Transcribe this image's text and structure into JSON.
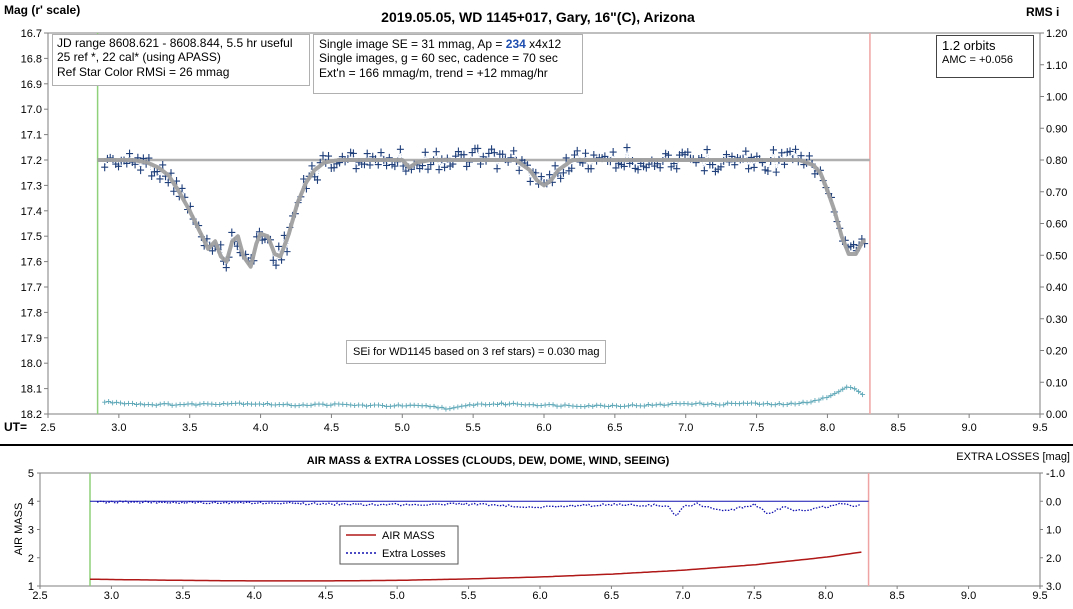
{
  "chart_data": [
    {
      "type": "scatter",
      "title": "2019.05.05, WD 1145+017, Gary, 16\"(C), Arizona",
      "ylabel": "Mag (r' scale)",
      "y2label": "RMS i",
      "xlabel": "UT=",
      "xlim": [
        2.5,
        9.5
      ],
      "xticks": [
        "2.5",
        "3.0",
        "3.5",
        "4.0",
        "4.5",
        "5.0",
        "5.5",
        "6.0",
        "6.5",
        "7.0",
        "7.5",
        "8.0",
        "8.5",
        "9.0",
        "9.5"
      ],
      "ylim": [
        16.7,
        18.2
      ],
      "yticks": [
        "16.7",
        "16.8",
        "16.9",
        "17.0",
        "17.1",
        "17.2",
        "17.3",
        "17.4",
        "17.5",
        "17.6",
        "17.7",
        "17.8",
        "17.9",
        "18.0",
        "18.1",
        "18.2"
      ],
      "y2lim": [
        0.0,
        1.2
      ],
      "y2ticks": [
        "1.20",
        "1.10",
        "1.00",
        "0.90",
        "0.80",
        "0.70",
        "0.60",
        "0.50",
        "0.40",
        "0.30",
        "0.20",
        "0.10",
        "0.00"
      ],
      "grid": false,
      "vlines": [
        {
          "x": 2.85,
          "color": "#8fd07a"
        },
        {
          "x": 8.3,
          "color": "#f0a3a3"
        }
      ],
      "hline": {
        "y": 17.2,
        "color": "#b0b0b0"
      },
      "colors": {
        "mag": "#1f3f7a",
        "model": "#a0a0a0",
        "rms": "#5fa8b8"
      },
      "info_left": [
        "JD range 8608.621 - 8608.844, 5.5 hr useful",
        "25 ref *, 22 cal* (using APASS)",
        "Ref Star Color RMSi = 26 mmag"
      ],
      "info_mid": {
        "line1_pre": "Single image SE = 31 mmag, Ap = ",
        "ap": "234",
        "line1_post": " x4x12",
        "line2": "Single images, g = 60 sec, cadence = 70 sec",
        "line3": "Ext'n = 166 mmag/m, trend = +12 mmag/hr"
      },
      "info_right": [
        "1.2 orbits",
        "AMC = +0.056"
      ],
      "sei_note": "SEi for WD1145 based on 3 ref stars) = 0.030 mag",
      "model": {
        "x": [
          2.85,
          3.0,
          3.1,
          3.2,
          3.28,
          3.35,
          3.42,
          3.5,
          3.57,
          3.63,
          3.68,
          3.72,
          3.76,
          3.8,
          3.84,
          3.88,
          3.93,
          3.97,
          4.0,
          4.05,
          4.1,
          4.14,
          4.2,
          4.26,
          4.32,
          4.38,
          4.45,
          4.55,
          4.7,
          4.9,
          5.0,
          5.05,
          5.1,
          5.2,
          5.5,
          5.8,
          5.9,
          5.95,
          6.0,
          6.05,
          6.1,
          6.2,
          6.3,
          6.5,
          7.0,
          7.5,
          7.7,
          7.8,
          7.85,
          7.9,
          7.95,
          8.0,
          8.05,
          8.1,
          8.15,
          8.2,
          8.25,
          8.27
        ],
        "y": [
          17.2,
          17.2,
          17.2,
          17.21,
          17.23,
          17.26,
          17.32,
          17.4,
          17.48,
          17.55,
          17.52,
          17.58,
          17.6,
          17.52,
          17.5,
          17.58,
          17.62,
          17.53,
          17.49,
          17.5,
          17.57,
          17.58,
          17.49,
          17.37,
          17.29,
          17.24,
          17.21,
          17.2,
          17.2,
          17.2,
          17.2,
          17.23,
          17.21,
          17.2,
          17.2,
          17.2,
          17.24,
          17.28,
          17.3,
          17.28,
          17.24,
          17.2,
          17.2,
          17.2,
          17.2,
          17.2,
          17.2,
          17.2,
          17.21,
          17.22,
          17.25,
          17.32,
          17.4,
          17.5,
          17.57,
          17.57,
          17.52,
          17.52
        ]
      },
      "rms": {
        "x": [
          2.9,
          3.0,
          3.2,
          3.5,
          3.8,
          4.0,
          4.2,
          4.5,
          4.8,
          5.0,
          5.2,
          5.35,
          5.5,
          5.8,
          6.0,
          6.3,
          6.5,
          6.8,
          7.0,
          7.2,
          7.4,
          7.6,
          7.8,
          8.0,
          8.1,
          8.15,
          8.2,
          8.25
        ],
        "y": [
          0.038,
          0.036,
          0.03,
          0.03,
          0.034,
          0.032,
          0.028,
          0.03,
          0.026,
          0.026,
          0.024,
          0.016,
          0.03,
          0.032,
          0.028,
          0.026,
          0.026,
          0.028,
          0.034,
          0.03,
          0.034,
          0.03,
          0.032,
          0.052,
          0.075,
          0.085,
          0.082,
          0.06
        ]
      }
    },
    {
      "type": "line",
      "title": "AIR MASS & EXTRA LOSSES (CLOUDS, DEW, DOME, WIND, SEEING)",
      "ylabel": "AIR MASS",
      "y2label": "EXTRA LOSSES [mag]",
      "xlim": [
        2.5,
        9.5
      ],
      "xticks": [
        "2.5",
        "3.0",
        "3.5",
        "4.0",
        "4.5",
        "5.0",
        "5.5",
        "6.0",
        "6.5",
        "7.0",
        "7.5",
        "8.0",
        "8.5",
        "9.0",
        "9.5"
      ],
      "ylim": [
        1,
        5
      ],
      "yticks": [
        "5",
        "4",
        "3",
        "2",
        "1"
      ],
      "y2lim": [
        -1.0,
        3.0
      ],
      "y2ticks": [
        "-1.0",
        "0.0",
        "1.0",
        "2.0",
        "3.0"
      ],
      "legend": [
        "AIR MASS",
        "Extra Losses"
      ],
      "colors": {
        "airmass": "#b01818",
        "losses": "#1010b0"
      },
      "airmass": {
        "x": [
          2.85,
          3.0,
          3.5,
          4.0,
          4.5,
          5.0,
          5.5,
          6.0,
          6.5,
          7.0,
          7.5,
          8.0,
          8.25
        ],
        "y": [
          1.24,
          1.23,
          1.2,
          1.18,
          1.18,
          1.2,
          1.25,
          1.32,
          1.42,
          1.56,
          1.75,
          2.02,
          2.2
        ]
      },
      "losses": {
        "x": [
          2.9,
          3.5,
          4.0,
          4.5,
          5.0,
          5.5,
          6.0,
          6.5,
          6.9,
          6.95,
          7.0,
          7.1,
          7.3,
          7.5,
          7.6,
          7.7,
          7.8,
          8.0,
          8.1,
          8.2,
          8.25
        ],
        "y": [
          0.02,
          0.05,
          0.05,
          0.1,
          0.12,
          0.1,
          0.2,
          0.12,
          0.15,
          0.55,
          0.2,
          0.1,
          0.35,
          0.12,
          0.45,
          0.2,
          0.35,
          0.2,
          0.1,
          0.15,
          0.1
        ]
      }
    }
  ]
}
